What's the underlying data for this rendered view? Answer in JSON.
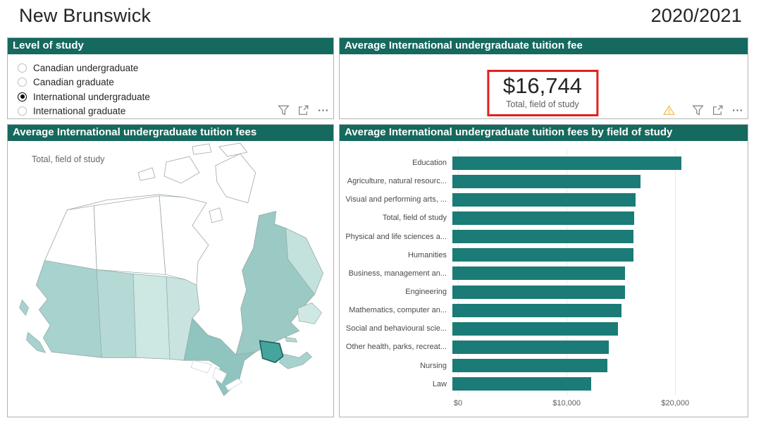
{
  "page": {
    "title": "New Brunswick",
    "period": "2020/2021"
  },
  "colors": {
    "panel_header_bg": "#15695E",
    "panel_header_text": "#FFFFFF",
    "bar": "#1B7B76",
    "highlight_box_border": "#E3201B",
    "map_highlight_stroke": "#1D5F5A"
  },
  "level_of_study": {
    "title": "Level of study",
    "options": [
      {
        "label": "Canadian undergraduate",
        "selected": false
      },
      {
        "label": "Canadian graduate",
        "selected": false
      },
      {
        "label": "International undergraduate",
        "selected": true
      },
      {
        "label": "International graduate",
        "selected": false
      }
    ]
  },
  "tuition_card": {
    "title": "Average International undergraduate tuition fee",
    "value": "$16,744",
    "caption": "Total, field of study"
  },
  "map_panel": {
    "title": "Average International undergraduate tuition fees",
    "legend_label": "Total, field of study",
    "highlighted_region": "New Brunswick",
    "regions": {
      "yukon": "#FFFFFF",
      "northwest-territories": "#FFFFFF",
      "nunavut": "#FFFFFF",
      "british-columbia": "#A8D2CE",
      "alberta": "#B5D9D5",
      "saskatchewan": "#CDE7E3",
      "manitoba": "#C9E4E0",
      "ontario": "#8FC4BF",
      "quebec": "#9BC9C4",
      "labrador": "#C3E1DD",
      "newfoundland": "#CFE8E4",
      "new-brunswick": "#44A59D",
      "nova-scotia": "#A8D2CE",
      "prince-edward-island": "#B5D9D5"
    }
  },
  "field_chart": {
    "title": "Average International undergraduate tuition fees by field of study",
    "chart_data": {
      "type": "bar",
      "orientation": "horizontal",
      "title": "Average International undergraduate tuition fees by field of study",
      "categories": [
        "Education",
        "Agriculture, natural resourc...",
        "Visual and performing arts, ...",
        "Total, field of study",
        "Physical and life sciences a...",
        "Humanities",
        "Business, management an...",
        "Engineering",
        "Mathematics, computer an...",
        "Social and behavioural scie...",
        "Other health, parks, recreat...",
        "Nursing",
        "Law"
      ],
      "values": [
        21100,
        17300,
        16900,
        16744,
        16700,
        16650,
        15900,
        15900,
        15550,
        15250,
        14400,
        14250,
        12800
      ],
      "xlabel": "",
      "ylabel": "",
      "xlim": [
        0,
        25500
      ],
      "xticks": {
        "values": [
          0,
          10000,
          20000
        ],
        "labels": [
          "$0",
          "$10,000",
          "$20,000"
        ]
      },
      "grid": true,
      "legend": false
    }
  }
}
